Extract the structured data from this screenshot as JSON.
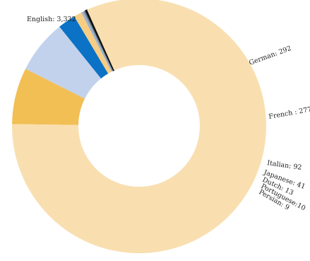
{
  "chart_data": {
    "type": "pie",
    "donut": true,
    "title": "",
    "legend": "none",
    "slices": [
      {
        "label": "English: 3,332",
        "name": "English",
        "value": 3332,
        "color": "#f9dfb0"
      },
      {
        "label": "German: 292",
        "name": "German",
        "value": 292,
        "color": "#f2bf55"
      },
      {
        "label": "French : 277",
        "name": "French",
        "value": 277,
        "color": "#c3d2ec"
      },
      {
        "label": "Italian: 92",
        "name": "Italian",
        "value": 92,
        "color": "#0b72c6"
      },
      {
        "label": "Japanese: 41",
        "name": "Japanese",
        "value": 41,
        "color": "#f7cd84"
      },
      {
        "label": "Dutch: 13",
        "name": "Dutch",
        "value": 13,
        "color": "#9fb3c8"
      },
      {
        "label": "Portuguese:10",
        "name": "Portuguese",
        "value": 10,
        "color": "#6b7d8e"
      },
      {
        "label": "Persian: 9",
        "name": "Persian",
        "value": 9,
        "color": "#111111"
      }
    ]
  }
}
